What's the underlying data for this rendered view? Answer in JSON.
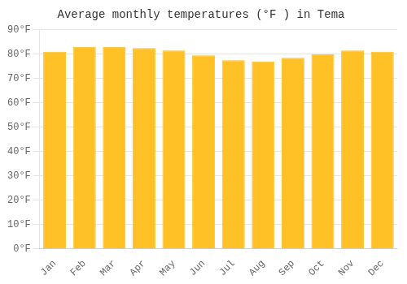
{
  "chart_data": {
    "type": "bar",
    "title": "Average monthly temperatures (°F ) in Tema",
    "categories": [
      "Jan",
      "Feb",
      "Mar",
      "Apr",
      "May",
      "Jun",
      "Jul",
      "Aug",
      "Sep",
      "Oct",
      "Nov",
      "Dec"
    ],
    "values": [
      81,
      83,
      83,
      82.5,
      81.5,
      79.5,
      77.5,
      77,
      78.5,
      80,
      81.5,
      81
    ],
    "color": "#FFC125",
    "ylim": [
      0,
      90
    ],
    "yticks": [
      {
        "value": 0,
        "label": "0°F"
      },
      {
        "value": 10,
        "label": "10°F"
      },
      {
        "value": 20,
        "label": "20°F"
      },
      {
        "value": 30,
        "label": "30°F"
      },
      {
        "value": 40,
        "label": "40°F"
      },
      {
        "value": 50,
        "label": "50°F"
      },
      {
        "value": 60,
        "label": "60°F"
      },
      {
        "value": 70,
        "label": "70°F"
      },
      {
        "value": 80,
        "label": "80°F"
      },
      {
        "value": 90,
        "label": "90°F"
      }
    ],
    "grid": true
  }
}
